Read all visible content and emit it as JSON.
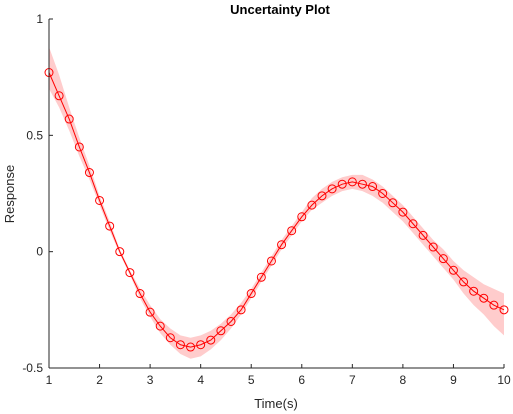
{
  "chart_data": {
    "type": "line",
    "title": "Uncertainty Plot",
    "xlabel": "Time(s)",
    "ylabel": "Response",
    "xlim": [
      1,
      10
    ],
    "ylim": [
      -0.5,
      1
    ],
    "x_ticks": [
      1,
      2,
      3,
      4,
      5,
      6,
      7,
      8,
      9,
      10
    ],
    "y_ticks": [
      -0.5,
      0,
      0.5,
      1
    ],
    "x_tick_labels": [
      "1",
      "2",
      "3",
      "4",
      "5",
      "6",
      "7",
      "8",
      "9",
      "10"
    ],
    "y_tick_labels": [
      "-0.5",
      "0",
      "0.5",
      "1"
    ],
    "grid": false,
    "line_color": "#ff0000",
    "band_color": "#ffcccc",
    "series": [
      {
        "x": [
          1.0,
          1.2,
          1.4,
          1.6,
          1.8,
          2.0,
          2.2,
          2.4,
          2.6,
          2.8,
          3.0,
          3.2,
          3.4,
          3.6,
          3.8,
          4.0,
          4.2,
          4.4,
          4.6,
          4.8,
          5.0,
          5.2,
          5.4,
          5.6,
          5.8,
          6.0,
          6.2,
          6.4,
          6.6,
          6.8,
          7.0,
          7.2,
          7.4,
          7.6,
          7.8,
          8.0,
          8.2,
          8.4,
          8.6,
          8.8,
          9.0,
          9.2,
          9.4,
          9.6,
          9.8,
          10.0
        ],
        "y": [
          0.77,
          0.67,
          0.57,
          0.45,
          0.34,
          0.22,
          0.11,
          0.0,
          -0.09,
          -0.18,
          -0.26,
          -0.32,
          -0.37,
          -0.4,
          -0.41,
          -0.4,
          -0.38,
          -0.34,
          -0.3,
          -0.25,
          -0.18,
          -0.11,
          -0.04,
          0.03,
          0.09,
          0.15,
          0.2,
          0.24,
          0.27,
          0.29,
          0.3,
          0.29,
          0.28,
          0.25,
          0.21,
          0.17,
          0.12,
          0.07,
          0.02,
          -0.03,
          -0.08,
          -0.13,
          -0.17,
          -0.2,
          -0.23,
          -0.25
        ],
        "lower": [
          0.7,
          0.62,
          0.52,
          0.41,
          0.31,
          0.2,
          0.09,
          -0.01,
          -0.1,
          -0.2,
          -0.28,
          -0.35,
          -0.4,
          -0.44,
          -0.46,
          -0.45,
          -0.42,
          -0.38,
          -0.33,
          -0.27,
          -0.2,
          -0.13,
          -0.06,
          0.01,
          0.07,
          0.13,
          0.18,
          0.21,
          0.24,
          0.26,
          0.27,
          0.26,
          0.24,
          0.21,
          0.17,
          0.13,
          0.08,
          0.03,
          -0.02,
          -0.07,
          -0.12,
          -0.18,
          -0.23,
          -0.27,
          -0.32,
          -0.36
        ],
        "upper": [
          0.88,
          0.76,
          0.62,
          0.49,
          0.37,
          0.24,
          0.13,
          0.01,
          -0.08,
          -0.16,
          -0.23,
          -0.29,
          -0.33,
          -0.36,
          -0.37,
          -0.36,
          -0.34,
          -0.31,
          -0.27,
          -0.22,
          -0.16,
          -0.09,
          -0.02,
          0.05,
          0.11,
          0.17,
          0.23,
          0.27,
          0.3,
          0.32,
          0.33,
          0.33,
          0.31,
          0.28,
          0.24,
          0.2,
          0.15,
          0.1,
          0.05,
          0.01,
          -0.04,
          -0.08,
          -0.11,
          -0.14,
          -0.16,
          -0.18
        ]
      }
    ]
  }
}
